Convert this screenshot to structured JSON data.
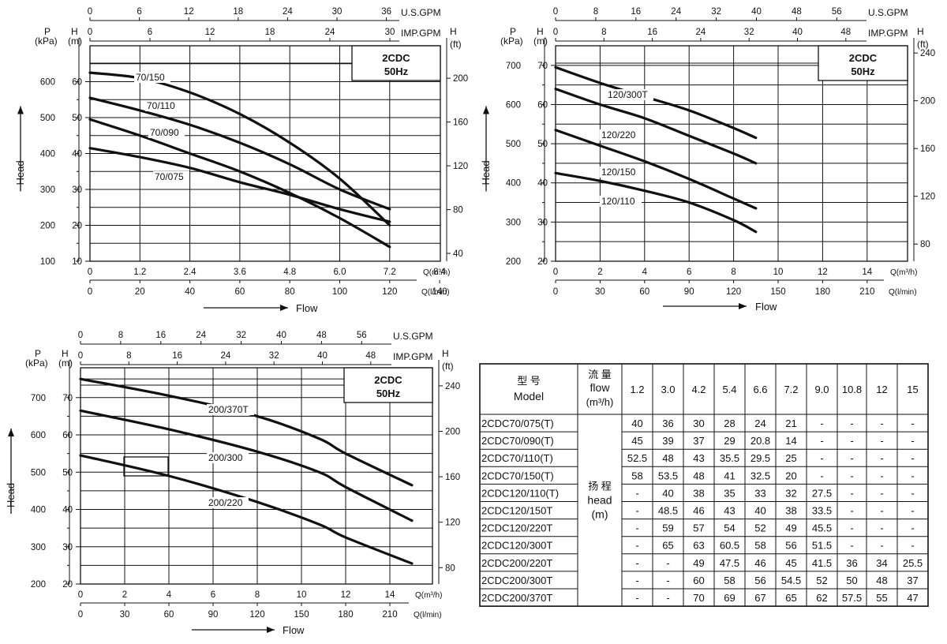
{
  "labels": {
    "usgpm": "U.S.GPM",
    "impgpm": "IMP.GPM",
    "p": "P",
    "kpa": "(kPa)",
    "h": "H",
    "m": "(m)",
    "ft": "(ft)",
    "head": "Head",
    "flow": "Flow",
    "q_m3h": "Q(m³/h)",
    "q_lmin": "Q(l/min)"
  },
  "chart_data": [
    {
      "type": "line",
      "title": "2CDC 50Hz",
      "title_lines": [
        "2CDC",
        "50Hz"
      ],
      "xlabel": "Q(m³/h)",
      "ylabel": "Head",
      "grid": true,
      "xlim": [
        0,
        8.4
      ],
      "ylim": [
        10,
        70
      ],
      "x_ticks": [
        "0",
        "1.2",
        "2.4",
        "3.6",
        "4.8",
        "6.0",
        "7.2",
        "8.4"
      ],
      "lmin_ticks": [
        "0",
        "20",
        "40",
        "60",
        "80",
        "100",
        "120",
        "140"
      ],
      "usgpm_ticks": [
        "0",
        "6",
        "12",
        "18",
        "24",
        "30",
        "36"
      ],
      "impgpm_ticks": [
        "0",
        "6",
        "12",
        "18",
        "24",
        "30"
      ],
      "h_ticks": [
        "10",
        "20",
        "30",
        "40",
        "50",
        "60"
      ],
      "p_ticks": [
        "100",
        "200",
        "300",
        "400",
        "500",
        "600"
      ],
      "ft_ticks": [
        "40",
        "80",
        "120",
        "160",
        "200"
      ],
      "series": [
        {
          "name": "70/150",
          "x": [
            0,
            1.2,
            2.4,
            3.6,
            4.8,
            6.0,
            7.2
          ],
          "y": [
            62.5,
            61,
            57,
            51,
            43,
            33,
            20
          ]
        },
        {
          "name": "70/110",
          "x": [
            0,
            1.2,
            2.4,
            3.6,
            4.8,
            6.0,
            7.2
          ],
          "y": [
            55.5,
            52,
            48,
            43,
            37,
            30,
            24.5
          ]
        },
        {
          "name": "70/090",
          "x": [
            0,
            1.2,
            2.4,
            3.6,
            4.8,
            6.0,
            7.2
          ],
          "y": [
            49.5,
            45,
            40,
            35,
            29,
            22,
            14
          ]
        },
        {
          "name": "70/075",
          "x": [
            0,
            1.2,
            2.4,
            3.6,
            4.8,
            6.0,
            7.2
          ],
          "y": [
            41.5,
            39,
            36,
            32,
            28.5,
            24.5,
            21
          ]
        }
      ]
    },
    {
      "type": "line",
      "title": "2CDC 50Hz",
      "title_lines": [
        "2CDC",
        "50Hz"
      ],
      "xlabel": "Q(m³/h)",
      "ylabel": "Head",
      "grid": true,
      "xlim": [
        0,
        16
      ],
      "ylim": [
        20,
        75
      ],
      "x_ticks": [
        "0",
        "2",
        "4",
        "6",
        "8",
        "10",
        "12",
        "14"
      ],
      "lmin_ticks": [
        "0",
        "30",
        "60",
        "90",
        "120",
        "150",
        "180",
        "210"
      ],
      "usgpm_ticks": [
        "0",
        "8",
        "16",
        "24",
        "32",
        "40",
        "48",
        "56"
      ],
      "impgpm_ticks": [
        "0",
        "8",
        "16",
        "24",
        "32",
        "40",
        "48"
      ],
      "h_ticks": [
        "20",
        "30",
        "40",
        "50",
        "60",
        "70"
      ],
      "p_ticks": [
        "200",
        "300",
        "400",
        "500",
        "600",
        "700"
      ],
      "ft_ticks": [
        "80",
        "120",
        "160",
        "200",
        "240"
      ],
      "series": [
        {
          "name": "120/300T",
          "x": [
            0,
            2,
            4,
            6,
            8,
            9
          ],
          "y": [
            69.5,
            65.5,
            62,
            58.5,
            54,
            51.5
          ]
        },
        {
          "name": "120/220",
          "x": [
            0,
            2,
            4,
            6,
            8,
            9
          ],
          "y": [
            64,
            60,
            56.5,
            52,
            47.5,
            45
          ]
        },
        {
          "name": "120/150",
          "x": [
            0,
            2,
            4,
            6,
            8,
            9
          ],
          "y": [
            53.5,
            49.5,
            45.5,
            41,
            36,
            33.5
          ]
        },
        {
          "name": "120/110",
          "x": [
            0,
            2,
            4,
            6,
            8,
            9
          ],
          "y": [
            42.5,
            40.5,
            38,
            35,
            30.5,
            27.5
          ]
        }
      ]
    },
    {
      "type": "line",
      "title": "2CDC 50Hz",
      "title_lines": [
        "2CDC",
        "50Hz"
      ],
      "xlabel": "Q(m³/h)",
      "ylabel": "Head",
      "grid": true,
      "xlim": [
        0,
        16
      ],
      "ylim": [
        20,
        78
      ],
      "x_ticks": [
        "0",
        "2",
        "4",
        "6",
        "8",
        "10",
        "12",
        "14"
      ],
      "lmin_ticks": [
        "0",
        "30",
        "60",
        "90",
        "120",
        "150",
        "180",
        "210"
      ],
      "usgpm_ticks": [
        "0",
        "8",
        "16",
        "24",
        "32",
        "40",
        "48",
        "56"
      ],
      "impgpm_ticks": [
        "0",
        "8",
        "16",
        "24",
        "32",
        "40",
        "48"
      ],
      "h_ticks": [
        "20",
        "30",
        "40",
        "50",
        "60",
        "70"
      ],
      "p_ticks": [
        "200",
        "300",
        "400",
        "500",
        "600",
        "700"
      ],
      "ft_ticks": [
        "80",
        "120",
        "160",
        "200",
        "240"
      ],
      "series": [
        {
          "name": "200/370T",
          "x": [
            0,
            4,
            8,
            10.8,
            12,
            15
          ],
          "y": [
            75,
            70.5,
            65,
            59,
            55,
            46.5
          ]
        },
        {
          "name": "200/300",
          "x": [
            0,
            4,
            8,
            10.8,
            12,
            15
          ],
          "y": [
            66.5,
            61.5,
            55.5,
            50,
            46,
            37
          ]
        },
        {
          "name": "200/220",
          "x": [
            0,
            4,
            8,
            10.8,
            12,
            15
          ],
          "y": [
            54.5,
            49,
            42,
            36,
            32.5,
            25.5
          ]
        }
      ]
    },
    {
      "type": "table",
      "header": {
        "model_cn": "型 号",
        "model": "Model",
        "flow_cn": "流 量",
        "flow": "flow",
        "flow_unit": "(m³/h)",
        "head_cn": "扬 程",
        "head": "head",
        "head_unit": "(m)"
      },
      "flows": [
        "1.2",
        "3.0",
        "4.2",
        "5.4",
        "6.6",
        "7.2",
        "9.0",
        "10.8",
        "12",
        "15"
      ],
      "rows": [
        {
          "model": "2CDC70/075(T)",
          "values": [
            "40",
            "36",
            "30",
            "28",
            "24",
            "21",
            "-",
            "-",
            "-",
            "-"
          ]
        },
        {
          "model": "2CDC70/090(T)",
          "values": [
            "45",
            "39",
            "37",
            "29",
            "20.8",
            "14",
            "-",
            "-",
            "-",
            "-"
          ]
        },
        {
          "model": "2CDC70/110(T)",
          "values": [
            "52.5",
            "48",
            "43",
            "35.5",
            "29.5",
            "25",
            "-",
            "-",
            "-",
            "-"
          ]
        },
        {
          "model": "2CDC70/150(T)",
          "values": [
            "58",
            "53.5",
            "48",
            "41",
            "32.5",
            "20",
            "-",
            "-",
            "-",
            "-"
          ]
        },
        {
          "model": "2CDC120/110(T)",
          "values": [
            "-",
            "40",
            "38",
            "35",
            "33",
            "32",
            "27.5",
            "-",
            "-",
            "-"
          ]
        },
        {
          "model": "2CDC120/150T",
          "values": [
            "-",
            "48.5",
            "46",
            "43",
            "40",
            "38",
            "33.5",
            "-",
            "-",
            "-"
          ]
        },
        {
          "model": "2CDC120/220T",
          "values": [
            "-",
            "59",
            "57",
            "54",
            "52",
            "49",
            "45.5",
            "-",
            "-",
            "-"
          ]
        },
        {
          "model": "2CDC120/300T",
          "values": [
            "-",
            "65",
            "63",
            "60.5",
            "58",
            "56",
            "51.5",
            "-",
            "-",
            "-"
          ]
        },
        {
          "model": "2CDC200/220T",
          "values": [
            "-",
            "-",
            "49",
            "47.5",
            "46",
            "45",
            "41.5",
            "36",
            "34",
            "25.5"
          ]
        },
        {
          "model": "2CDC200/300T",
          "values": [
            "-",
            "-",
            "60",
            "58",
            "56",
            "54.5",
            "52",
            "50",
            "48",
            "37"
          ]
        },
        {
          "model": "2CDC200/370T",
          "values": [
            "-",
            "-",
            "70",
            "69",
            "67",
            "65",
            "62",
            "57.5",
            "55",
            "47"
          ]
        }
      ]
    }
  ]
}
